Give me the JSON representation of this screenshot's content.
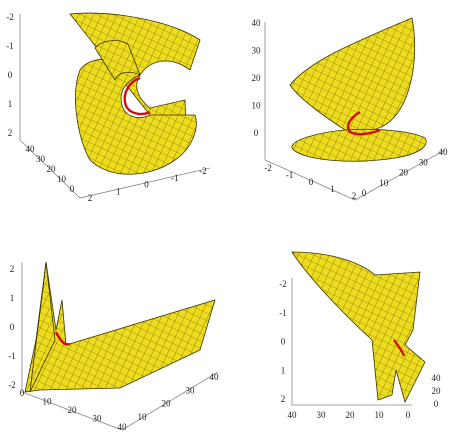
{
  "panels": [
    {
      "axes": [
        {
          "ticks": [
            "-2",
            "-1",
            "0",
            "1",
            "2"
          ]
        },
        {
          "ticks": [
            "40",
            "30",
            "20",
            "10",
            "0"
          ]
        },
        {
          "ticks": [
            "2",
            "1",
            "0",
            "-1",
            "-2"
          ]
        }
      ]
    },
    {
      "axes": [
        {
          "ticks": [
            "40",
            "30",
            "20",
            "10",
            "0"
          ]
        },
        {
          "ticks": [
            "-2",
            "-1",
            "0",
            "1",
            "2"
          ]
        },
        {
          "ticks": [
            "0",
            "10",
            "20",
            "30",
            "40"
          ]
        }
      ]
    },
    {
      "axes": [
        {
          "ticks": [
            "2",
            "1",
            "0",
            "-1",
            "-2"
          ]
        },
        {
          "ticks": [
            "0",
            "10",
            "20",
            "30",
            "40"
          ]
        },
        {
          "ticks": [
            "10",
            "20",
            "30",
            "40"
          ]
        }
      ]
    },
    {
      "axes": [
        {
          "ticks": [
            "-2",
            "-1",
            "0",
            "1",
            "2"
          ]
        },
        {
          "ticks": [
            "40",
            "30",
            "20",
            "10",
            "0"
          ]
        },
        {
          "ticks": [
            "40",
            "20",
            "0"
          ]
        }
      ]
    }
  ]
}
